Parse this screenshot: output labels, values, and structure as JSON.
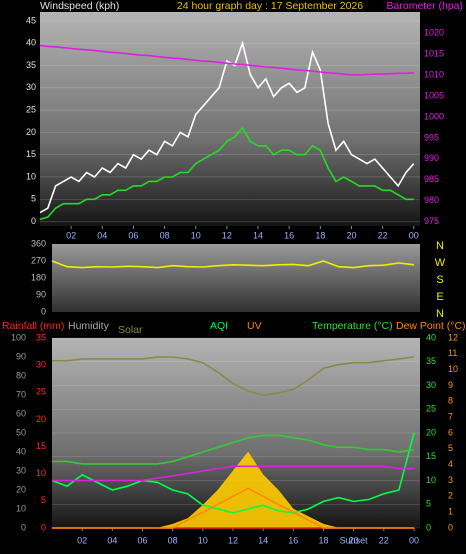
{
  "chart_data": [
    {
      "type": "line",
      "title": "24 hour graph day : 17 September 2026",
      "x": [
        0,
        0.5,
        1,
        1.5,
        2,
        2.5,
        3,
        3.5,
        4,
        4.5,
        5,
        5.5,
        6,
        6.5,
        7,
        7.5,
        8,
        8.5,
        9,
        9.5,
        10,
        10.5,
        11,
        11.5,
        12,
        12.5,
        13,
        13.5,
        14,
        14.5,
        15,
        15.5,
        16,
        16.5,
        17,
        17.5,
        18,
        18.5,
        19,
        19.5,
        20,
        20.5,
        21,
        21.5,
        22,
        22.5,
        23,
        23.5,
        24
      ],
      "series": [
        {
          "name": "Windspeed (kph)",
          "color": "#ffffff",
          "values": [
            2,
            3,
            8,
            9,
            10,
            9,
            11,
            10,
            12,
            11,
            13,
            12,
            15,
            14,
            16,
            15,
            18,
            17,
            20,
            19,
            24,
            26,
            28,
            30,
            36,
            35,
            40,
            33,
            30,
            32,
            28,
            30,
            31,
            29,
            30,
            38,
            34,
            22,
            16,
            18,
            15,
            14,
            13,
            14,
            12,
            10,
            8,
            11,
            13
          ]
        },
        {
          "color": "#22dd22",
          "values": [
            0.5,
            1,
            3,
            4,
            4,
            4,
            5,
            5,
            6,
            6,
            7,
            7,
            8,
            8,
            9,
            9,
            10,
            10,
            11,
            11,
            13,
            14,
            15,
            16,
            18,
            19,
            21,
            18,
            17,
            17,
            15,
            16,
            16,
            15,
            15,
            17,
            16,
            12,
            9,
            10,
            9,
            8,
            8,
            8,
            7,
            7,
            6,
            5,
            5
          ]
        },
        {
          "name": "Barometer (hpa)",
          "color": "#e020e0",
          "axis": "y2",
          "values": [
            1017.0,
            1016.8,
            1016.7,
            1016.5,
            1016.3,
            1016.1,
            1016.0,
            1015.8,
            1015.6,
            1015.4,
            1015.3,
            1015.1,
            1014.9,
            1014.7,
            1014.6,
            1014.4,
            1014.2,
            1014.0,
            1013.9,
            1013.7,
            1013.5,
            1013.3,
            1013.2,
            1013.0,
            1012.8,
            1012.6,
            1012.5,
            1012.3,
            1012.1,
            1011.9,
            1011.8,
            1011.6,
            1011.4,
            1011.2,
            1011.1,
            1010.9,
            1010.7,
            1010.5,
            1010.4,
            1010.2,
            1010.0,
            1010.0,
            1010.1,
            1010.2,
            1010.2,
            1010.3,
            1010.4,
            1010.4,
            1010.5
          ]
        }
      ],
      "xlim": [
        0,
        24.4
      ],
      "xticks": [
        {
          "value": 2,
          "label": "02"
        },
        {
          "value": 4,
          "label": "04"
        },
        {
          "value": 6,
          "label": "06"
        },
        {
          "value": 8,
          "label": "08"
        },
        10,
        12,
        14,
        16,
        18,
        20,
        22,
        {
          "value": 24,
          "label": "00"
        }
      ],
      "ylim": [
        -1,
        47
      ],
      "yticks": [
        0,
        5,
        10,
        15,
        20,
        25,
        30,
        35,
        40,
        45
      ],
      "y2lim": [
        974,
        1025
      ],
      "y2ticks": [
        975,
        980,
        985,
        990,
        995,
        1000,
        1005,
        1010,
        1015,
        1020
      ],
      "grid": true
    },
    {
      "type": "line",
      "x": [
        0,
        1,
        2,
        3,
        4,
        5,
        6,
        7,
        8,
        9,
        10,
        11,
        12,
        13,
        14,
        15,
        16,
        17,
        18,
        19,
        20,
        21,
        22,
        23,
        24
      ],
      "series": [
        {
          "color": "#eeee00",
          "values": [
            270,
            240,
            235,
            240,
            238,
            242,
            240,
            235,
            245,
            240,
            238,
            245,
            250,
            248,
            245,
            250,
            252,
            245,
            270,
            240,
            235,
            245,
            248,
            260,
            250
          ]
        }
      ],
      "xlim": [
        0,
        24.4
      ],
      "ylim": [
        0,
        360
      ],
      "yticks": [
        0,
        90,
        180,
        270,
        360
      ],
      "compass_labels": [
        "N",
        "W",
        "S",
        "E",
        "N"
      ],
      "grid": false
    },
    {
      "type": "line",
      "x": [
        0,
        1,
        2,
        3,
        4,
        5,
        6,
        7,
        8,
        9,
        10,
        11,
        12,
        13,
        14,
        15,
        16,
        17,
        18,
        19,
        20,
        21,
        22,
        23,
        24
      ],
      "series": [
        {
          "name": "Rainfall (mm)",
          "color": "#ff2020",
          "values": [
            0,
            0,
            0,
            0,
            0,
            0,
            0,
            0,
            0,
            0,
            0,
            0,
            0,
            0,
            0,
            0,
            0,
            0,
            0,
            0,
            0,
            0,
            0,
            0,
            0
          ]
        },
        {
          "name": "Humidity",
          "color": "#8a8a44",
          "axis": "y3",
          "values": [
            88,
            88,
            89,
            89,
            89,
            89,
            89,
            90,
            90,
            89,
            87,
            82,
            76,
            72,
            70,
            71,
            73,
            78,
            84,
            86,
            87,
            87,
            88,
            89,
            90
          ]
        },
        {
          "name": "Solar",
          "color": "#ffcc00",
          "axis": "y3",
          "fill": true,
          "values": [
            0,
            0,
            0,
            0,
            0,
            0,
            0,
            0,
            2,
            5,
            12,
            20,
            30,
            40,
            28,
            20,
            10,
            6,
            2,
            0,
            0,
            0,
            0,
            0,
            0
          ]
        },
        {
          "name": "AQI",
          "color": "#00ff44",
          "axis": "y3",
          "values": [
            25,
            22,
            28,
            24,
            20,
            22,
            25,
            24,
            20,
            18,
            12,
            10,
            8,
            10,
            12,
            9,
            8,
            10,
            14,
            16,
            14,
            15,
            18,
            20,
            50
          ]
        },
        {
          "name": "UV",
          "color": "#ff8800",
          "axis": "y4",
          "values": [
            0,
            0,
            0,
            0,
            0,
            0,
            0,
            0,
            0,
            0.5,
            1,
            1.5,
            2,
            2.5,
            2,
            1.5,
            1,
            0.5,
            0,
            0,
            0,
            0,
            0,
            0,
            0
          ]
        },
        {
          "name": "Temperature (°C)",
          "color": "#33cc33",
          "axis": "y2",
          "values": [
            14,
            14,
            13.5,
            13.5,
            13.5,
            13.5,
            13.5,
            13.5,
            14,
            15,
            16,
            17,
            18,
            19,
            19.5,
            19.5,
            19,
            18.5,
            17.5,
            17,
            17,
            16.5,
            16.5,
            16,
            16.5
          ]
        },
        {
          "name": "Dew Point (°C)",
          "color": "#dd22dd",
          "axis": "y2",
          "values": [
            10,
            10,
            10,
            10,
            10,
            10,
            10,
            10.5,
            11,
            11.5,
            12,
            12.5,
            13,
            13,
            13,
            13,
            13,
            13,
            13,
            13,
            13,
            13,
            13,
            12.5,
            12.5
          ]
        }
      ],
      "xlim": [
        0,
        24.4
      ],
      "xticks": [
        {
          "value": 2,
          "label": "02"
        },
        {
          "value": 4,
          "label": "04"
        },
        {
          "value": 6,
          "label": "06"
        },
        {
          "value": 8,
          "label": "08"
        },
        10,
        12,
        14,
        16,
        18,
        20,
        22,
        {
          "value": 24,
          "label": "00"
        }
      ],
      "annotations": [
        {
          "text": "Sunset",
          "x": 20
        }
      ],
      "ylim": [
        0,
        35
      ],
      "yticks": [
        0,
        5,
        10,
        15,
        20,
        25,
        30,
        35
      ],
      "y2lim": [
        0,
        40
      ],
      "y2ticks": [
        0,
        5,
        10,
        15,
        20,
        25,
        30,
        35,
        40
      ],
      "y3lim": [
        0,
        100
      ],
      "y3ticks": [
        0,
        10,
        20,
        30,
        40,
        50,
        60,
        70,
        80,
        90,
        100
      ],
      "y4lim": [
        0,
        12
      ],
      "y4ticks": [
        0,
        1,
        2,
        3,
        4,
        5,
        6,
        7,
        8,
        9,
        10,
        11,
        12
      ],
      "grid": true
    }
  ]
}
